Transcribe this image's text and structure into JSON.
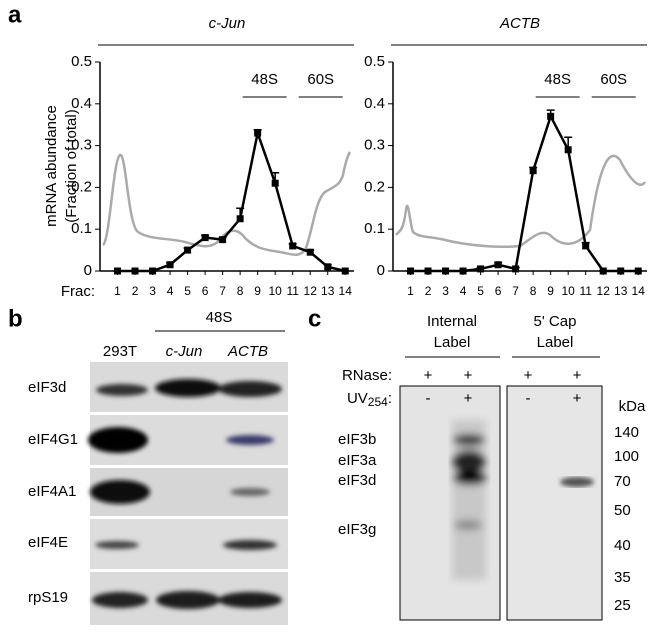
{
  "panel_labels": [
    "a",
    "b",
    "c"
  ],
  "chart_data": [
    {
      "type": "line",
      "title": "c-Jun",
      "y_label": [
        "mRNA abundance",
        "(Fraction of total)"
      ],
      "x_label": "Frac:",
      "x": [
        1,
        2,
        3,
        4,
        5,
        6,
        7,
        8,
        9,
        10,
        11,
        12,
        13,
        14
      ],
      "values": [
        0,
        0,
        0,
        0.015,
        0.05,
        0.08,
        0.075,
        0.125,
        0.33,
        0.21,
        0.06,
        0.045,
        0.01,
        0
      ],
      "errors": [
        0,
        0,
        0,
        0.005,
        0.005,
        0.005,
        0.005,
        0.025,
        0.008,
        0.025,
        0.005,
        0.005,
        0.005,
        0
      ],
      "color": "#000000",
      "xlim": [
        0,
        14.5
      ],
      "ylim": [
        0,
        0.5
      ],
      "xticks": [
        1,
        2,
        3,
        4,
        5,
        6,
        7,
        8,
        9,
        10,
        11,
        12,
        13,
        14
      ],
      "yticks": [
        0,
        0.1,
        0.2,
        0.3,
        0.4,
        0.5
      ],
      "annotations": [
        "48S",
        "60S"
      ]
    },
    {
      "type": "line",
      "title": "ACTB",
      "x": [
        1,
        2,
        3,
        4,
        5,
        6,
        7,
        8,
        9,
        10,
        11,
        12,
        13,
        14
      ],
      "values": [
        0,
        0,
        0,
        0,
        0.005,
        0.015,
        0.005,
        0.24,
        0.37,
        0.29,
        0.06,
        0,
        0,
        0
      ],
      "errors": [
        0,
        0,
        0,
        0,
        0.003,
        0.005,
        0.003,
        0.008,
        0.015,
        0.03,
        0.008,
        0,
        0,
        0
      ],
      "color": "#000000",
      "xlim": [
        0,
        14.5
      ],
      "ylim": [
        0,
        0.5
      ],
      "xticks": [
        1,
        2,
        3,
        4,
        5,
        6,
        7,
        8,
        9,
        10,
        11,
        12,
        13,
        14
      ],
      "yticks": [
        0,
        0.1,
        0.2,
        0.3,
        0.4,
        0.5
      ],
      "annotations": [
        "48S",
        "60S"
      ]
    }
  ],
  "blot": {
    "group": "48S",
    "lanes": [
      "293T",
      "c-Jun",
      "ACTB"
    ],
    "rows": [
      "eIF3d",
      "eIF4G1",
      "eIF4A1",
      "eIF4E",
      "rpS19"
    ]
  },
  "gel": {
    "groups": [
      [
        "Internal",
        "Label"
      ],
      [
        "5' Cap",
        "Label"
      ]
    ],
    "rnase_label": "RNase:",
    "uv_label": {
      "text": "UV",
      "subscript": "254",
      "suffix": ":"
    },
    "rnase": [
      "+",
      "+",
      "+",
      "+"
    ],
    "uv": [
      "-",
      "+",
      "-",
      "+"
    ],
    "proteins": [
      "eIF3b",
      "eIF3a",
      "eIF3d",
      "eIF3g"
    ],
    "unit": "kDa",
    "markers": [
      140,
      100,
      70,
      50,
      40,
      35,
      25
    ]
  }
}
